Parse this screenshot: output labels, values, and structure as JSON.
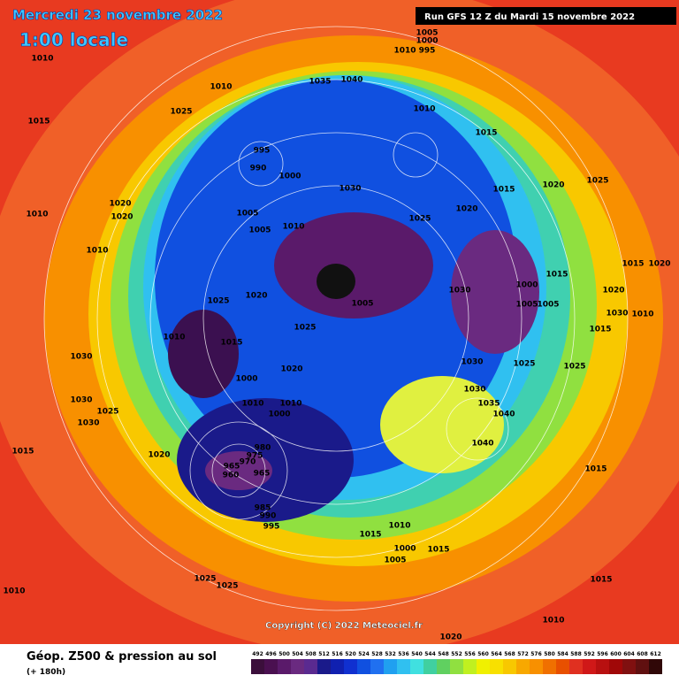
{
  "header": {
    "date": "Mercredi 23 novembre 2022",
    "time": "1:00 locale",
    "run": "Run GFS 12 Z du Mardi 15 novembre 2022"
  },
  "footer": {
    "title": "Géop. Z500 & pression au sol",
    "lead": "(+ 180h)",
    "copyright": "Copyright (C) 2022 Meteociel.fr"
  },
  "scale": {
    "labels": [
      492,
      496,
      500,
      504,
      508,
      512,
      516,
      520,
      524,
      528,
      532,
      536,
      540,
      544,
      548,
      552,
      556,
      560,
      564,
      568,
      572,
      576,
      580,
      584,
      588,
      592,
      596,
      600,
      604,
      608,
      612
    ],
    "colors": [
      "#3b0f3b",
      "#4a1050",
      "#5a1a6a",
      "#6a2a80",
      "#5a2a90",
      "#1a1a8a",
      "#1020b0",
      "#1030d0",
      "#1050e0",
      "#2070f0",
      "#20a0f0",
      "#30c0f0",
      "#40e0e0",
      "#40d0a0",
      "#60d060",
      "#90e040",
      "#c0f020",
      "#f0f000",
      "#f8e000",
      "#f8c800",
      "#f8a800",
      "#f89000",
      "#f07000",
      "#e85000",
      "#e03020",
      "#d01818",
      "#b81010",
      "#a00808",
      "#801010",
      "#601010",
      "#300808"
    ]
  },
  "isobar_labels": [
    "1010",
    "1015",
    "1010",
    "1025",
    "1010",
    "1035",
    "1040",
    "1005",
    "1000",
    "995",
    "1010",
    "1010",
    "1015",
    "995",
    "990",
    "1000",
    "1030",
    "1005",
    "1005",
    "1010",
    "1020",
    "1020",
    "1010",
    "1025",
    "1020",
    "1015",
    "1020",
    "1025",
    "1030",
    "1005",
    "1025",
    "1020",
    "1025",
    "1010",
    "1015",
    "1030",
    "1030",
    "1025",
    "1030",
    "1015",
    "1020",
    "1000",
    "1020",
    "1010",
    "1010",
    "1000",
    "980",
    "975",
    "970",
    "965",
    "960",
    "965",
    "985",
    "990",
    "995",
    "1030",
    "1025",
    "1030",
    "1035",
    "1040",
    "1040",
    "1015",
    "1015",
    "1010",
    "1015",
    "1005",
    "1000",
    "1010",
    "1025",
    "1025",
    "1020",
    "1010",
    "1015",
    "1015",
    "1025",
    "1010",
    "1030",
    "1020",
    "1015",
    "1015",
    "1020",
    "1005",
    "1005",
    "1000"
  ]
}
